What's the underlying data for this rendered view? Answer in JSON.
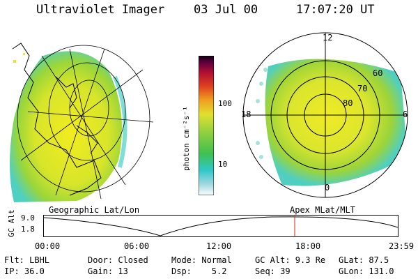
{
  "header": {
    "instrument": "Ultraviolet Imager",
    "date": "03 Jul 00",
    "time": "17:07:20 UT"
  },
  "colorbar": {
    "unit_label": "photon cm⁻²s⁻¹",
    "tick_labels": [
      "100",
      "10"
    ]
  },
  "polar_plot": {
    "lat_labels": [
      "60",
      "70",
      "80"
    ],
    "mlt_labels": [
      "12",
      "18",
      "6",
      "0"
    ]
  },
  "panel_labels": {
    "left": "Geographic Lat/Lon",
    "right": "Apex MLat/MLT"
  },
  "altitude_strip": {
    "axis_label": "GC Alt",
    "ticks": [
      "9.0",
      "1.8"
    ],
    "time_ticks": [
      "00:00",
      "06:00",
      "12:00",
      "18:00",
      "23:59"
    ]
  },
  "info_grid": {
    "rows": [
      [
        "Flt: LBHL",
        "Door: Closed",
        "Mode: Normal",
        "GC Alt: 9.3 Re",
        "GLat: 87.5"
      ],
      [
        "IP: 36.0",
        "Gain: 13",
        "Dsp:    5.2",
        "Seq: 39",
        "GLon: 131.0"
      ]
    ]
  },
  "colors": {
    "aurora_yellow": "#e8e830",
    "aurora_green": "#8cd23c",
    "aurora_cyan": "#48d2c8",
    "marker_red": "#cc2020"
  }
}
